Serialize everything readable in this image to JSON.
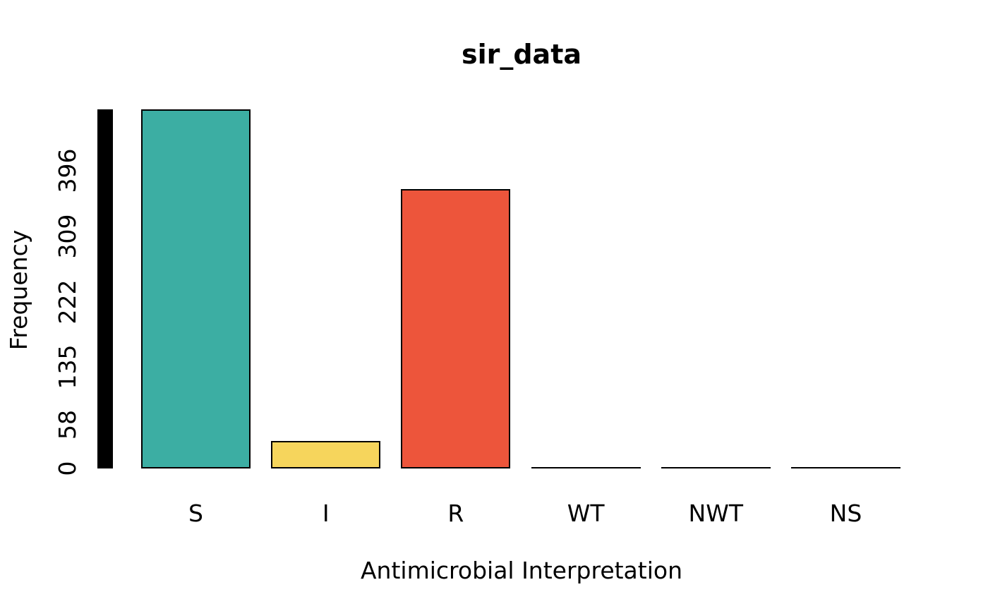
{
  "chart_data": {
    "type": "bar",
    "title": "sir_data",
    "xlabel": "Antimicrobial Interpretation",
    "ylabel": "Frequency",
    "categories": [
      "S",
      "I",
      "R",
      "WT",
      "NWT",
      "NS"
    ],
    "values": [
      478,
      37,
      372,
      0,
      0,
      0
    ],
    "bar_colors": [
      "#3CAEA3",
      "#F6D55C",
      "#ED553B",
      "#000000",
      "#000000",
      "#000000"
    ],
    "bar_border_color": "#000000",
    "axis_bar_color": "#000000",
    "yticks": [
      0,
      58,
      135,
      222,
      309,
      396
    ],
    "ylim": [
      0,
      478
    ],
    "grid": false,
    "legend": false,
    "background": "#FFFFFF",
    "text_color": "#000000"
  }
}
